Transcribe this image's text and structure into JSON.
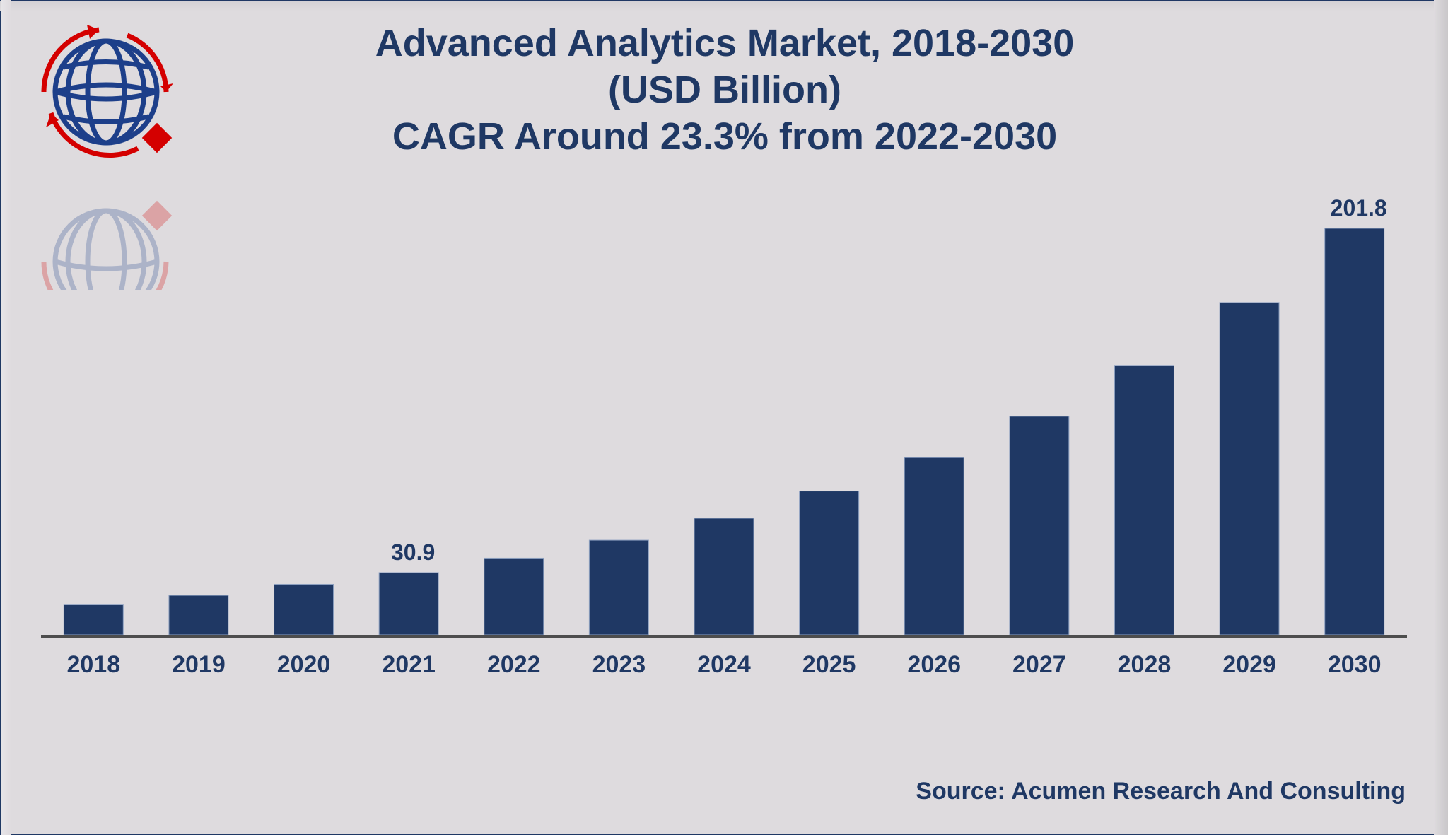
{
  "header": {
    "title_line1": "Advanced Analytics Market, 2018-2030",
    "title_line2": "(USD Billion)",
    "title_line3": "CAGR Around 23.3% from 2022-2030"
  },
  "logo": {
    "icon": "globe-with-circular-arrows-logo"
  },
  "source": "Source: Acumen Research And Consulting",
  "colors": {
    "bar": "#1f3864",
    "text": "#1f3864",
    "background": "#dedbde",
    "axis": "#4d4d4d",
    "logo_red": "#d40000",
    "logo_blue": "#1d3f8a"
  },
  "chart_data": {
    "type": "bar",
    "title": "Advanced Analytics Market, 2018-2030 (USD Billion)",
    "subtitle": "CAGR Around 23.3% from 2022-2030",
    "xlabel": "",
    "ylabel": "",
    "categories": [
      "2018",
      "2019",
      "2020",
      "2021",
      "2022",
      "2023",
      "2024",
      "2025",
      "2026",
      "2027",
      "2028",
      "2029",
      "2030"
    ],
    "values": [
      15.2,
      19.6,
      25.1,
      30.9,
      38.1,
      47.0,
      57.9,
      71.4,
      88.0,
      108.5,
      133.8,
      165.0,
      201.8
    ],
    "data_labels": {
      "2021": "30.9",
      "2030": "201.8"
    },
    "ylim": [
      0,
      210
    ],
    "grid": false,
    "legend": "none",
    "y_axis_visible": false
  }
}
